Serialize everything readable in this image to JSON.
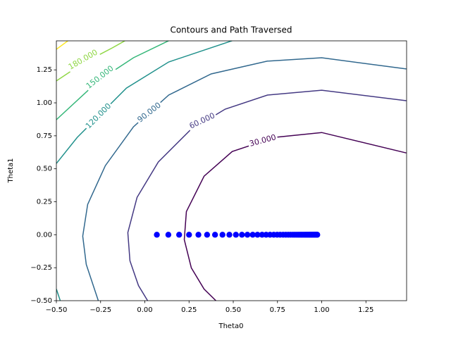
{
  "chart_data": {
    "type": "contour",
    "title": "Contours and Path Traversed",
    "xlabel": "Theta0",
    "ylabel": "Theta1",
    "xlim": [
      -0.5,
      1.48
    ],
    "ylim": [
      -0.5,
      1.47
    ],
    "xticks": [
      {
        "value": -0.5,
        "label": "−0.50"
      },
      {
        "value": -0.25,
        "label": "−0.25"
      },
      {
        "value": 0,
        "label": "0.00"
      },
      {
        "value": 0.25,
        "label": "0.25"
      },
      {
        "value": 0.5,
        "label": "0.50"
      },
      {
        "value": 0.75,
        "label": "0.75"
      },
      {
        "value": 1,
        "label": "1.00"
      },
      {
        "value": 1.25,
        "label": "1.25"
      }
    ],
    "yticks": [
      {
        "value": -0.5,
        "label": "−0.50"
      },
      {
        "value": -0.25,
        "label": "−0.25"
      },
      {
        "value": 0,
        "label": "0.00"
      },
      {
        "value": 0.25,
        "label": "0.25"
      },
      {
        "value": 0.5,
        "label": "0.50"
      },
      {
        "value": 0.75,
        "label": "0.75"
      },
      {
        "value": 1,
        "label": "1.00"
      },
      {
        "value": 1.25,
        "label": "1.25"
      }
    ],
    "contours": [
      {
        "level": 30,
        "label": "30.000",
        "color": "#440154",
        "x": [
          1.478,
          1.0,
          0.733,
          0.494,
          0.335,
          0.235,
          0.223,
          0.263,
          0.335,
          0.402
        ],
        "y": [
          0.62,
          0.775,
          0.738,
          0.631,
          0.444,
          0.176,
          -0.037,
          -0.251,
          -0.412,
          -0.5
        ]
      },
      {
        "level": 60,
        "label": "60.000",
        "color": "#443983",
        "x": [
          1.478,
          1.0,
          0.693,
          0.454,
          0.255,
          0.076,
          -0.044,
          -0.096,
          -0.084,
          -0.036,
          0.016
        ],
        "y": [
          1.016,
          1.096,
          1.059,
          0.952,
          0.791,
          0.551,
          0.283,
          0.016,
          -0.198,
          -0.385,
          -0.5
        ]
      },
      {
        "level": 90,
        "label": "90.000",
        "color": "#31688e",
        "x": [
          1.478,
          1.0,
          0.693,
          0.375,
          0.135,
          -0.064,
          -0.223,
          -0.323,
          -0.351,
          -0.331,
          -0.263
        ],
        "y": [
          1.257,
          1.342,
          1.316,
          1.219,
          1.059,
          0.818,
          0.524,
          0.23,
          -0.011,
          -0.225,
          -0.5
        ]
      },
      {
        "level": 120,
        "label": "120.000",
        "color": "#21918c",
        "x": [
          0.494,
          0.135,
          -0.104,
          -0.263,
          -0.382,
          -0.5,
          null,
          -0.5,
          -0.478
        ],
        "y": [
          1.471,
          1.31,
          1.112,
          0.898,
          0.738,
          0.54,
          null,
          -0.412,
          -0.5
        ]
      },
      {
        "level": 150,
        "label": "150.000",
        "color": "#35b779",
        "x": [
          0.135,
          -0.064,
          -0.263,
          -0.5
        ],
        "y": [
          1.471,
          1.342,
          1.166,
          0.872
        ]
      },
      {
        "level": 180,
        "label": "180.000",
        "color": "#8fd744",
        "x": [
          -0.112,
          -0.183,
          -0.351,
          -0.5
        ],
        "y": [
          1.471,
          1.417,
          1.299,
          1.166
        ]
      },
      {
        "level": 210,
        "color": "#fde725",
        "x": [
          -0.434,
          -0.5
        ],
        "y": [
          1.471,
          1.406
        ]
      }
    ],
    "path": {
      "color": "#0000ff",
      "x": [
        0.068,
        0.133,
        0.194,
        0.25,
        0.303,
        0.352,
        0.397,
        0.439,
        0.478,
        0.515,
        0.549,
        0.58,
        0.61,
        0.637,
        0.663,
        0.686,
        0.708,
        0.729,
        0.748,
        0.765,
        0.782,
        0.797,
        0.811,
        0.824,
        0.837,
        0.848,
        0.859,
        0.869,
        0.878,
        0.886,
        0.894,
        0.902,
        0.909,
        0.915,
        0.921,
        0.927,
        0.932,
        0.936,
        0.941,
        0.945,
        0.949,
        0.952,
        0.956,
        0.959,
        0.962,
        0.964,
        0.967,
        0.969,
        0.971,
        0.973,
        0.975
      ],
      "y": [
        0,
        0,
        0,
        0,
        0,
        0,
        0,
        0,
        0,
        0,
        0,
        0,
        0,
        0,
        0,
        0,
        0,
        0,
        0,
        0,
        0,
        0,
        0,
        0,
        0,
        0,
        0,
        0,
        0,
        0,
        0,
        0,
        0,
        0,
        0,
        0,
        0,
        0,
        0,
        0,
        0,
        0,
        0,
        0,
        0,
        0,
        0,
        0,
        0,
        0,
        0
      ]
    }
  }
}
